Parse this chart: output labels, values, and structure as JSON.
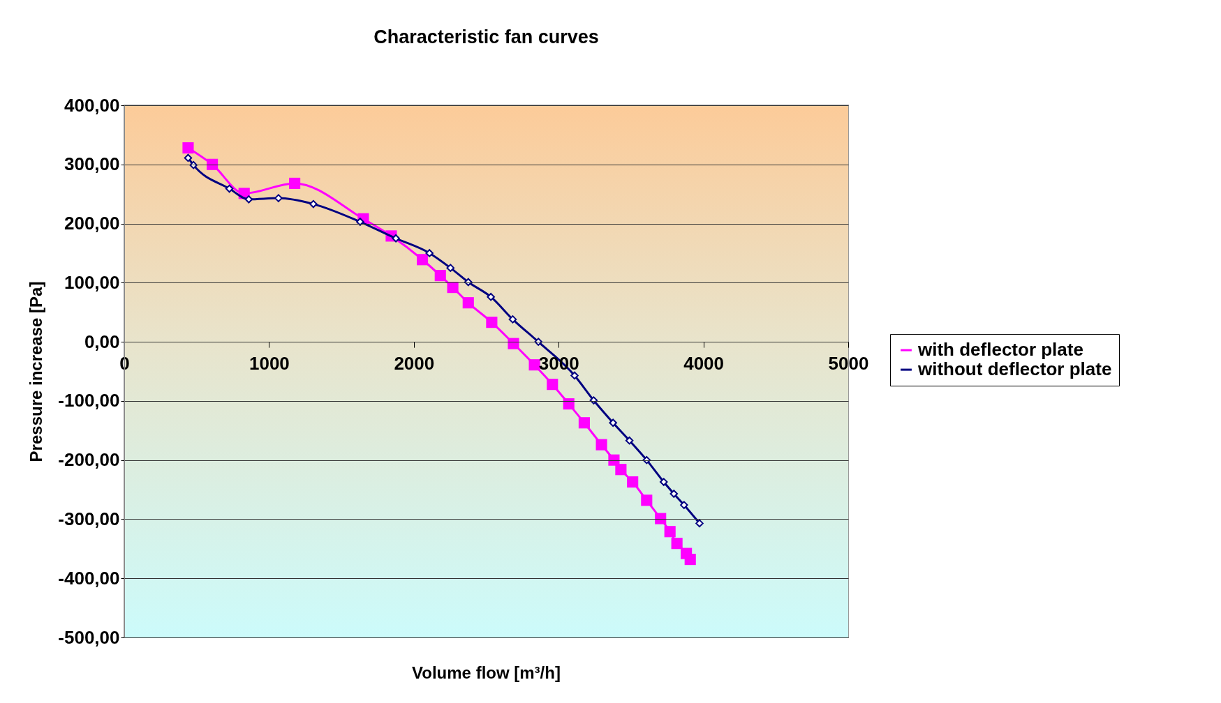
{
  "chart_data": {
    "type": "line",
    "title": "Characteristic fan curves",
    "xlabel": "Volume flow [m³/h]",
    "ylabel": "Pressure increase [Pa]",
    "xlim": [
      0,
      5000
    ],
    "xticks": [
      0,
      1000,
      2000,
      3000,
      4000,
      5000
    ],
    "ylim": [
      -500,
      400
    ],
    "yticks": [
      {
        "value": 400,
        "label": "400,00"
      },
      {
        "value": 300,
        "label": "300,00"
      },
      {
        "value": 200,
        "label": "200,00"
      },
      {
        "value": 100,
        "label": "100,00"
      },
      {
        "value": 0,
        "label": "0,00"
      },
      {
        "value": -100,
        "label": "-100,00"
      },
      {
        "value": -200,
        "label": "-200,00"
      },
      {
        "value": -300,
        "label": "-300,00"
      },
      {
        "value": -400,
        "label": "-400,00"
      },
      {
        "value": -500,
        "label": "-500,00"
      }
    ],
    "grid": "y",
    "legend": "right",
    "series": [
      {
        "name": "with deflector plate",
        "color": "#ff00ff",
        "marker": "square",
        "x": [
          441,
          608,
          828,
          1177,
          1651,
          1844,
          2059,
          2183,
          2269,
          2376,
          2538,
          2688,
          2833,
          2957,
          3070,
          3177,
          3296,
          3382,
          3430,
          3511,
          3608,
          3704,
          3769,
          3817,
          3882,
          3909
        ],
        "values": [
          328,
          300,
          251,
          268,
          208,
          179,
          139,
          112,
          92,
          66,
          33,
          -3,
          -39,
          -72,
          -105,
          -137,
          -174,
          -200,
          -216,
          -237,
          -268,
          -299,
          -321,
          -341,
          -358,
          -368
        ]
      },
      {
        "name": "without deflector plate",
        "color": "#000080",
        "marker": "diamond",
        "x": [
          441,
          478,
          726,
          860,
          1065,
          1306,
          1629,
          1876,
          2108,
          2253,
          2376,
          2532,
          2683,
          2860,
          3110,
          3242,
          3376,
          3489,
          3608,
          3726,
          3796,
          3866,
          3973
        ],
        "values": [
          311,
          299,
          259,
          241,
          243,
          233,
          203,
          175,
          150,
          125,
          101,
          76,
          38,
          0,
          -57,
          -99,
          -137,
          -167,
          -200,
          -237,
          -257,
          -276,
          -307
        ]
      }
    ]
  }
}
